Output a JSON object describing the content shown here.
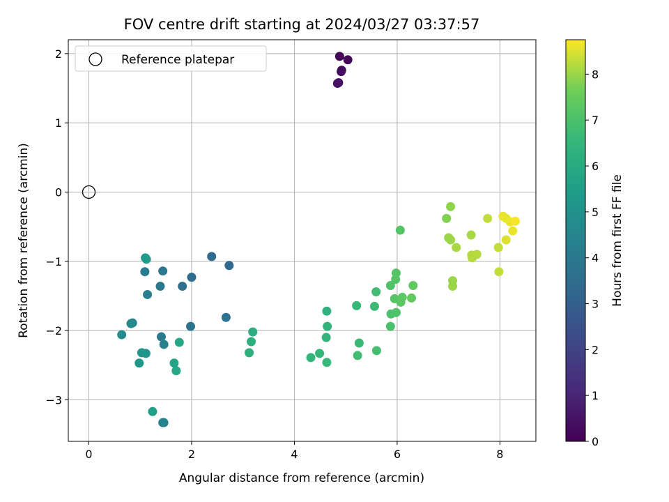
{
  "chart_data": {
    "type": "scatter",
    "title": "FOV centre drift starting at 2024/03/27 03:37:57",
    "xlabel": "Angular distance from reference (arcmin)",
    "ylabel": "Rotation from reference (arcmin)",
    "xlim": [
      -0.4,
      8.7
    ],
    "ylim": [
      -3.6,
      2.2
    ],
    "xticks": [
      0,
      2,
      4,
      6,
      8
    ],
    "yticks": [
      -3,
      -2,
      -1,
      0,
      1,
      2
    ],
    "grid": true,
    "legend": {
      "placement": "top-left",
      "entries": [
        "Reference platepar"
      ]
    },
    "reference_point": {
      "x": 0,
      "y": 0
    },
    "colorbar": {
      "label": "Hours from first FF file",
      "range": [
        0,
        8.75
      ],
      "ticks": [
        0,
        1,
        2,
        3,
        4,
        5,
        6,
        7,
        8
      ],
      "colormap": "viridis"
    },
    "points": [
      {
        "x": 4.88,
        "y": 1.96,
        "c": 0.1
      },
      {
        "x": 5.04,
        "y": 1.91,
        "c": 0.2
      },
      {
        "x": 4.92,
        "y": 1.76,
        "c": 0.3
      },
      {
        "x": 4.91,
        "y": 1.74,
        "c": 0.35
      },
      {
        "x": 4.86,
        "y": 1.58,
        "c": 0.4
      },
      {
        "x": 4.84,
        "y": 1.57,
        "c": 0.45
      },
      {
        "x": 2.39,
        "y": -0.93,
        "c": 3.4
      },
      {
        "x": 2.73,
        "y": -1.06,
        "c": 3.3
      },
      {
        "x": 2.0,
        "y": -1.23,
        "c": 3.5
      },
      {
        "x": 1.82,
        "y": -1.36,
        "c": 3.6
      },
      {
        "x": 2.67,
        "y": -1.81,
        "c": 3.7
      },
      {
        "x": 1.98,
        "y": -1.94,
        "c": 3.8
      },
      {
        "x": 1.44,
        "y": -1.14,
        "c": 3.9
      },
      {
        "x": 1.09,
        "y": -1.15,
        "c": 4.1
      },
      {
        "x": 1.39,
        "y": -1.36,
        "c": 4.0
      },
      {
        "x": 1.14,
        "y": -1.48,
        "c": 4.2
      },
      {
        "x": 1.41,
        "y": -2.09,
        "c": 4.1
      },
      {
        "x": 1.46,
        "y": -2.2,
        "c": 4.3
      },
      {
        "x": 1.1,
        "y": -0.95,
        "c": 5.2
      },
      {
        "x": 1.12,
        "y": -0.97,
        "c": 5.3
      },
      {
        "x": 0.85,
        "y": -1.89,
        "c": 4.5
      },
      {
        "x": 0.82,
        "y": -1.9,
        "c": 4.6
      },
      {
        "x": 0.64,
        "y": -2.06,
        "c": 4.7
      },
      {
        "x": 1.03,
        "y": -2.32,
        "c": 5.1
      },
      {
        "x": 1.11,
        "y": -2.33,
        "c": 5.1
      },
      {
        "x": 0.98,
        "y": -2.47,
        "c": 5.2
      },
      {
        "x": 1.44,
        "y": -3.33,
        "c": 4.4
      },
      {
        "x": 1.46,
        "y": -3.33,
        "c": 4.4
      },
      {
        "x": 1.24,
        "y": -3.17,
        "c": 5.5
      },
      {
        "x": 1.76,
        "y": -2.17,
        "c": 5.8
      },
      {
        "x": 1.66,
        "y": -2.47,
        "c": 5.7
      },
      {
        "x": 1.7,
        "y": -2.58,
        "c": 5.8
      },
      {
        "x": 3.19,
        "y": -2.02,
        "c": 6.1
      },
      {
        "x": 3.16,
        "y": -2.16,
        "c": 6.2
      },
      {
        "x": 3.12,
        "y": -2.32,
        "c": 6.2
      },
      {
        "x": 4.63,
        "y": -1.72,
        "c": 6.3
      },
      {
        "x": 4.64,
        "y": -1.94,
        "c": 6.4
      },
      {
        "x": 4.62,
        "y": -2.1,
        "c": 6.4
      },
      {
        "x": 4.32,
        "y": -2.39,
        "c": 6.5
      },
      {
        "x": 4.49,
        "y": -2.33,
        "c": 6.5
      },
      {
        "x": 4.63,
        "y": -2.46,
        "c": 6.6
      },
      {
        "x": 5.21,
        "y": -1.64,
        "c": 6.6
      },
      {
        "x": 5.56,
        "y": -1.65,
        "c": 6.7
      },
      {
        "x": 5.59,
        "y": -1.44,
        "c": 6.8
      },
      {
        "x": 5.26,
        "y": -2.18,
        "c": 6.7
      },
      {
        "x": 5.23,
        "y": -2.36,
        "c": 6.8
      },
      {
        "x": 5.6,
        "y": -2.29,
        "c": 6.9
      },
      {
        "x": 5.87,
        "y": -1.94,
        "c": 7.0
      },
      {
        "x": 5.88,
        "y": -1.76,
        "c": 7.0
      },
      {
        "x": 5.98,
        "y": -1.74,
        "c": 7.1
      },
      {
        "x": 5.87,
        "y": -1.35,
        "c": 7.1
      },
      {
        "x": 5.97,
        "y": -1.26,
        "c": 7.2
      },
      {
        "x": 5.98,
        "y": -1.17,
        "c": 7.2
      },
      {
        "x": 5.95,
        "y": -1.54,
        "c": 7.2
      },
      {
        "x": 6.07,
        "y": -1.59,
        "c": 7.3
      },
      {
        "x": 6.1,
        "y": -1.52,
        "c": 7.3
      },
      {
        "x": 6.28,
        "y": -1.53,
        "c": 7.4
      },
      {
        "x": 6.31,
        "y": -1.35,
        "c": 7.4
      },
      {
        "x": 6.06,
        "y": -0.55,
        "c": 7.2
      },
      {
        "x": 6.96,
        "y": -0.38,
        "c": 7.8
      },
      {
        "x": 7.04,
        "y": -0.21,
        "c": 7.9
      },
      {
        "x": 7.0,
        "y": -0.66,
        "c": 8.0
      },
      {
        "x": 7.04,
        "y": -0.69,
        "c": 8.0
      },
      {
        "x": 7.15,
        "y": -0.8,
        "c": 8.1
      },
      {
        "x": 7.08,
        "y": -1.28,
        "c": 8.0
      },
      {
        "x": 7.08,
        "y": -1.36,
        "c": 8.0
      },
      {
        "x": 7.44,
        "y": -0.62,
        "c": 8.1
      },
      {
        "x": 7.45,
        "y": -0.91,
        "c": 8.2
      },
      {
        "x": 7.46,
        "y": -0.95,
        "c": 8.2
      },
      {
        "x": 7.55,
        "y": -0.9,
        "c": 8.2
      },
      {
        "x": 7.76,
        "y": -0.38,
        "c": 8.3
      },
      {
        "x": 7.97,
        "y": -0.8,
        "c": 8.3
      },
      {
        "x": 7.98,
        "y": -1.15,
        "c": 8.3
      },
      {
        "x": 8.06,
        "y": -0.35,
        "c": 8.6
      },
      {
        "x": 8.12,
        "y": -0.38,
        "c": 8.6
      },
      {
        "x": 8.2,
        "y": -0.43,
        "c": 8.6
      },
      {
        "x": 8.3,
        "y": -0.42,
        "c": 8.7
      },
      {
        "x": 8.25,
        "y": -0.56,
        "c": 8.6
      },
      {
        "x": 8.12,
        "y": -0.69,
        "c": 8.5
      }
    ]
  }
}
